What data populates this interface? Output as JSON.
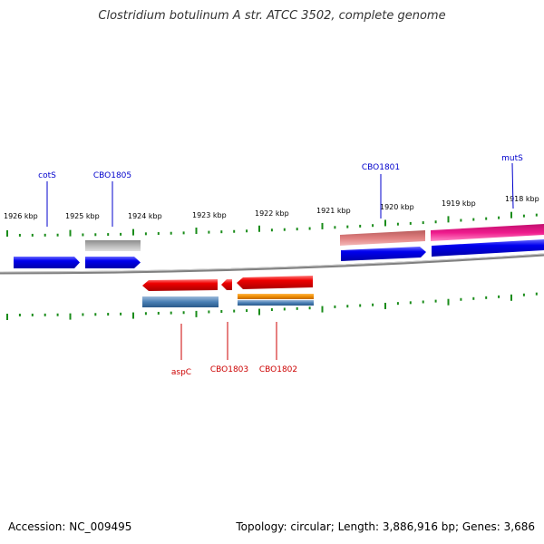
{
  "title": "Clostridium botulinum A str. ATCC 3502, complete genome",
  "footer": {
    "accession": "Accession: NC_009495",
    "summary": "Topology: circular; Length: 3,886,916 bp; Genes: 3,686"
  },
  "kbp_labels": [
    "1926 kbp",
    "1925 kbp",
    "1924 kbp",
    "1923 kbp",
    "1922 kbp",
    "1921 kbp",
    "1920 kbp",
    "1919 kbp",
    "1918 kbp"
  ],
  "gene_labels": {
    "cotS": "cotS",
    "CBO1805": "CBO1805",
    "CBO1801": "CBO1801",
    "mutS": "mutS",
    "aspC": "aspC",
    "CBO1803": "CBO1803",
    "CBO1802": "CBO1802"
  },
  "colors": {
    "forward_gene": "#0000ee",
    "reverse_gene": "#ee0000",
    "mutS_feature": "#ee1a8c",
    "CBO1801_feature": "#e08080",
    "CBO1805_feature": "#b8b8b8",
    "CBO1802_feature": "#f08c00",
    "reverse_feature": "#4a7fb5",
    "tick": "#1a8c1a",
    "backbone": "#808080"
  }
}
